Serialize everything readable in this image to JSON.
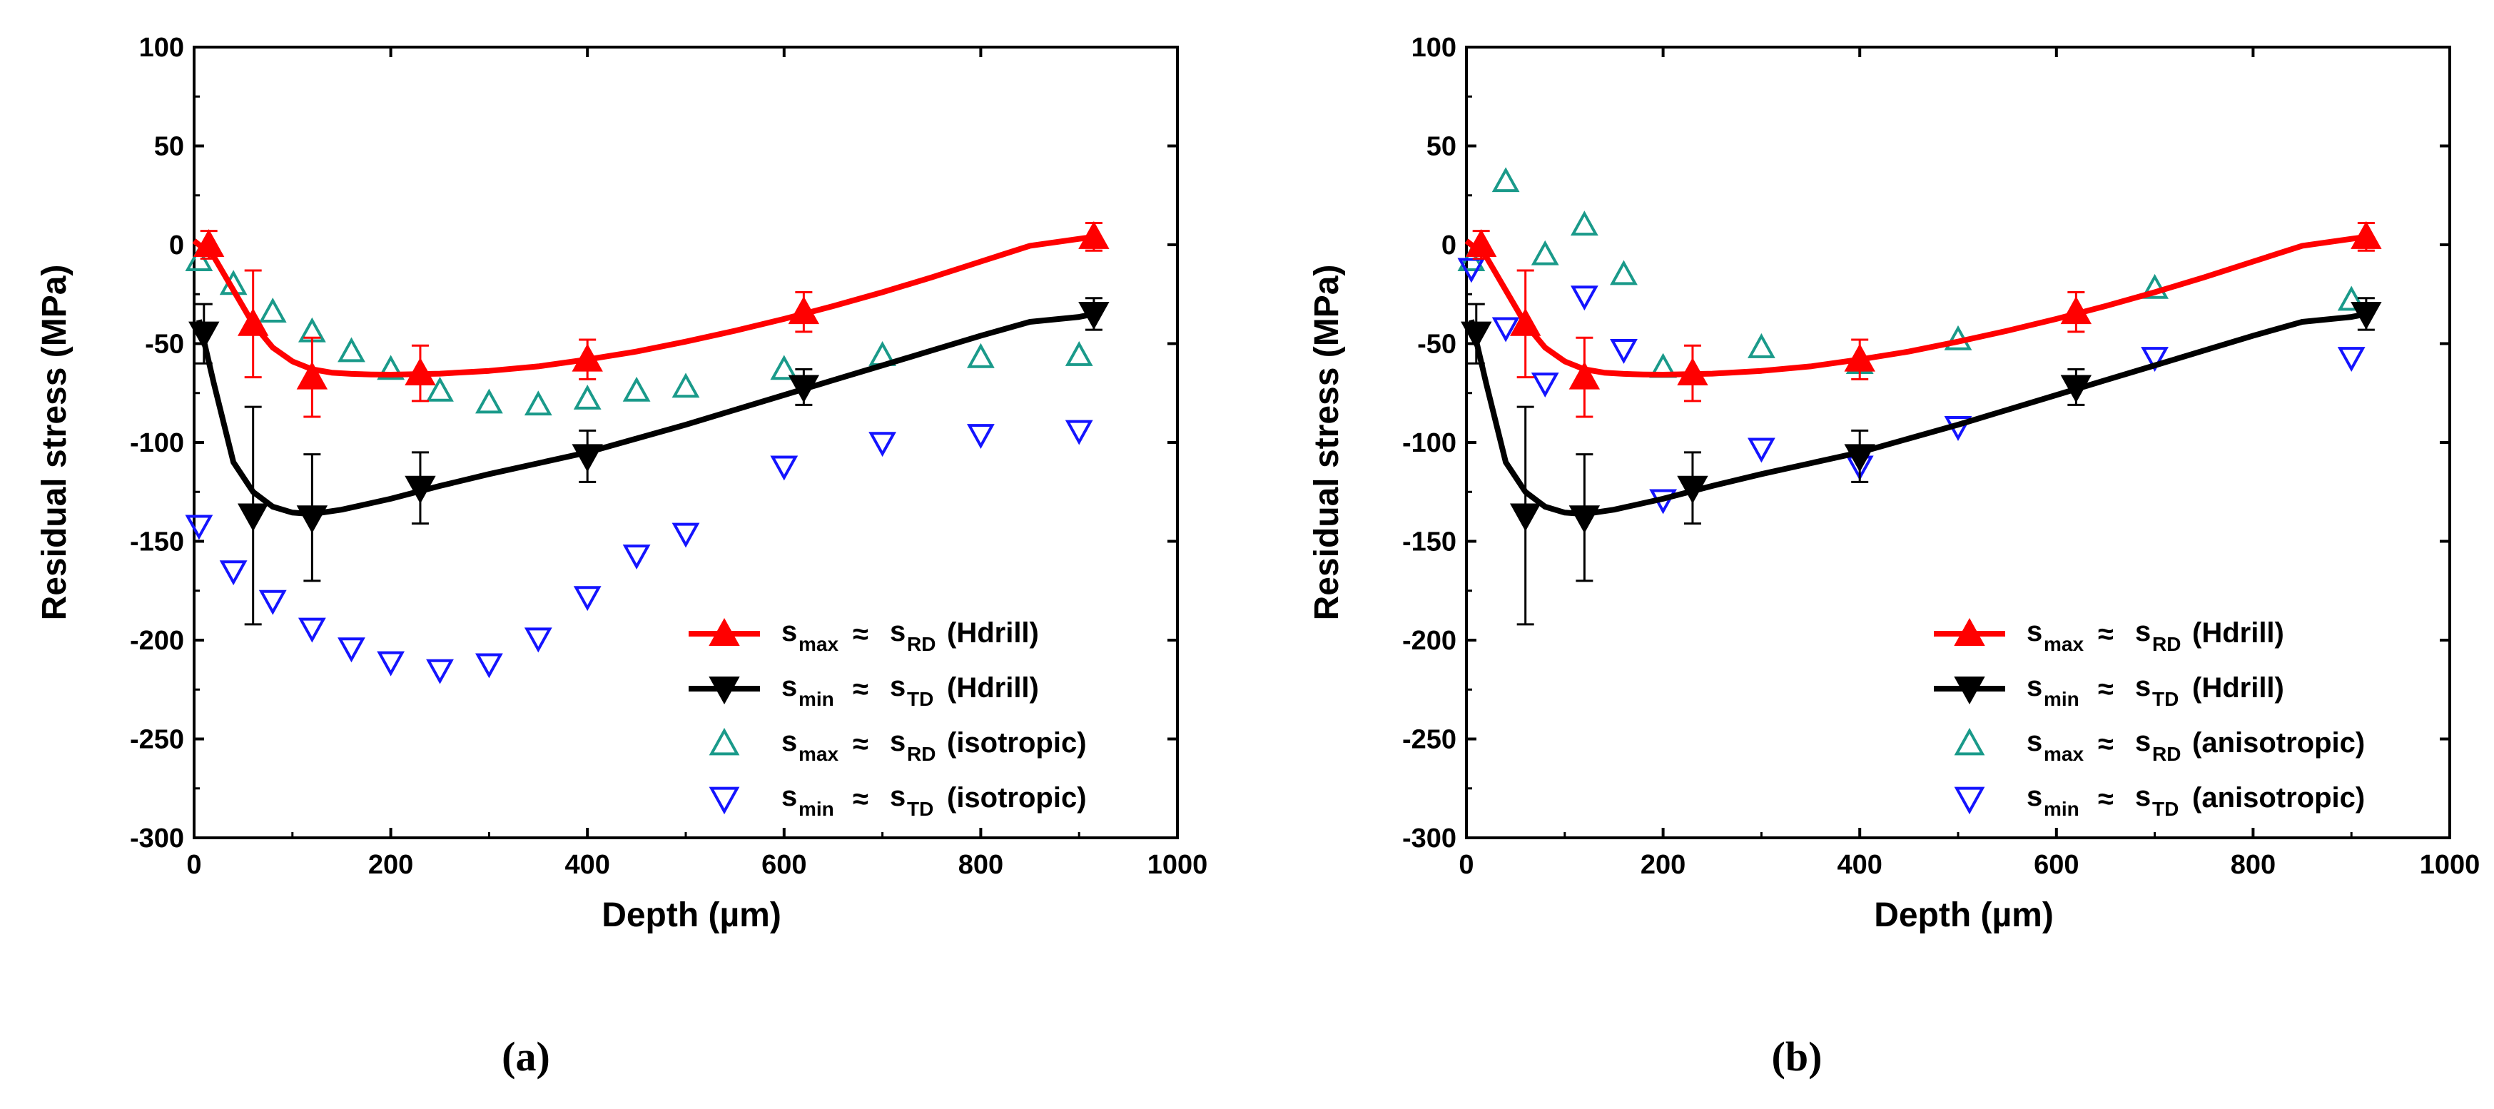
{
  "colors": {
    "red": "#ff0000",
    "black": "#000000",
    "teal": "#1a9a8a",
    "blue": "#1414ff"
  },
  "chart_data": [
    {
      "panel_label": "(a)",
      "type": "scatter",
      "xlabel": "Depth (µm)",
      "ylabel": "Residual stress (MPa)",
      "xlim": [
        0,
        1000
      ],
      "ylim": [
        -300,
        100
      ],
      "xticks": [
        0,
        200,
        400,
        600,
        800,
        1000
      ],
      "yticks": [
        -300,
        -250,
        -200,
        -150,
        -100,
        -50,
        0,
        50,
        100
      ],
      "grid": false,
      "legend_position": "bottom-right",
      "series": [
        {
          "id": "smax_hdrill",
          "marker": "triangle-up-filled",
          "color": "red",
          "line": true,
          "legend": {
            "main": "s",
            "sub": "max",
            "approx": "≈",
            "main2": "s",
            "sub2": "RD",
            "tag": "(Hdrill)"
          },
          "x": [
            15,
            60,
            120,
            230,
            400,
            620,
            915
          ],
          "y": [
            0,
            -40,
            -67,
            -65,
            -58,
            -34,
            4
          ],
          "err": [
            7,
            27,
            20,
            14,
            10,
            10,
            7
          ],
          "curve_x": [
            0,
            20,
            40,
            60,
            80,
            100,
            120,
            140,
            160,
            180,
            200,
            250,
            300,
            350,
            400,
            450,
            500,
            550,
            600,
            650,
            700,
            750,
            800,
            850,
            900,
            915
          ],
          "curve_y": [
            2,
            -6,
            -23,
            -40,
            -52,
            -59,
            -63,
            -64.7,
            -65.3,
            -65.6,
            -65.7,
            -65.2,
            -63.8,
            -61.5,
            -58,
            -54,
            -49,
            -43.5,
            -37.5,
            -31,
            -24,
            -16.5,
            -8.5,
            -0.5,
            3,
            4
          ]
        },
        {
          "id": "smin_hdrill",
          "marker": "triangle-down-filled",
          "color": "black",
          "line": true,
          "legend": {
            "main": "s",
            "sub": "min",
            "approx": "≈",
            "main2": "s",
            "sub2": "TD",
            "tag": "(Hdrill)"
          },
          "x": [
            10,
            60,
            120,
            230,
            400,
            620,
            915
          ],
          "y": [
            -45,
            -137,
            -138,
            -123,
            -107,
            -72,
            -35
          ],
          "err": [
            15,
            55,
            32,
            18,
            13,
            9,
            8
          ],
          "curve_x": [
            5,
            20,
            40,
            60,
            80,
            100,
            120,
            150,
            200,
            250,
            300,
            350,
            400,
            450,
            500,
            550,
            600,
            650,
            700,
            750,
            800,
            850,
            900,
            915
          ],
          "curve_y": [
            -38,
            -70,
            -110,
            -125,
            -132.5,
            -135.5,
            -136.2,
            -134,
            -128.5,
            -122,
            -116,
            -110.5,
            -105,
            -98,
            -91,
            -83.5,
            -76,
            -68.5,
            -61,
            -53.5,
            -46,
            -39,
            -36.5,
            -35
          ]
        },
        {
          "id": "smax_iso",
          "marker": "triangle-up-open",
          "color": "teal",
          "line": false,
          "legend": {
            "main": "s",
            "sub": "max",
            "approx": "≈",
            "main2": "s",
            "sub2": "RD",
            "tag": "(isotropic)"
          },
          "x": [
            5,
            40,
            80,
            120,
            160,
            200,
            250,
            300,
            350,
            400,
            450,
            500,
            600,
            700,
            800,
            900
          ],
          "y": [
            -8,
            -20,
            -34,
            -44,
            -54,
            -63,
            -74,
            -80,
            -81,
            -78,
            -74,
            -72,
            -63,
            -56,
            -57,
            -56
          ]
        },
        {
          "id": "smin_iso",
          "marker": "triangle-down-open",
          "color": "blue",
          "line": false,
          "legend": {
            "main": "s",
            "sub": "min",
            "approx": "≈",
            "main2": "s",
            "sub2": "TD",
            "tag": "(isotropic)"
          },
          "x": [
            5,
            40,
            80,
            120,
            160,
            200,
            250,
            300,
            350,
            400,
            450,
            500,
            600,
            700,
            800,
            900
          ],
          "y": [
            -142,
            -165,
            -180,
            -194,
            -204,
            -211,
            -215,
            -212,
            -199,
            -178,
            -157,
            -146,
            -112,
            -100,
            -96,
            -94
          ]
        }
      ]
    },
    {
      "panel_label": "(b)",
      "type": "scatter",
      "xlabel": "Depth (µm)",
      "ylabel": "Residual stress (MPa)",
      "xlim": [
        0,
        1000
      ],
      "ylim": [
        -300,
        100
      ],
      "xticks": [
        0,
        200,
        400,
        600,
        800,
        1000
      ],
      "yticks": [
        -300,
        -250,
        -200,
        -150,
        -100,
        -50,
        0,
        50,
        100
      ],
      "grid": false,
      "legend_position": "bottom-right",
      "series": [
        {
          "id": "smax_hdrill",
          "marker": "triangle-up-filled",
          "color": "red",
          "line": true,
          "legend": {
            "main": "s",
            "sub": "max",
            "approx": "≈",
            "main2": "s",
            "sub2": "RD",
            "tag": "(Hdrill)"
          },
          "x": [
            15,
            60,
            120,
            230,
            400,
            620,
            915
          ],
          "y": [
            0,
            -40,
            -67,
            -65,
            -58,
            -34,
            4
          ],
          "err": [
            7,
            27,
            20,
            14,
            10,
            10,
            7
          ],
          "curve_x": [
            0,
            20,
            40,
            60,
            80,
            100,
            120,
            140,
            160,
            180,
            200,
            250,
            300,
            350,
            400,
            450,
            500,
            550,
            600,
            650,
            700,
            750,
            800,
            850,
            900,
            915
          ],
          "curve_y": [
            2,
            -6,
            -23,
            -40,
            -52,
            -59,
            -63,
            -64.7,
            -65.3,
            -65.6,
            -65.7,
            -65.2,
            -63.8,
            -61.5,
            -58,
            -54,
            -49,
            -43.5,
            -37.5,
            -31,
            -24,
            -16.5,
            -8.5,
            -0.5,
            3,
            4
          ]
        },
        {
          "id": "smin_hdrill",
          "marker": "triangle-down-filled",
          "color": "black",
          "line": true,
          "legend": {
            "main": "s",
            "sub": "min",
            "approx": "≈",
            "main2": "s",
            "sub2": "TD",
            "tag": "(Hdrill)"
          },
          "x": [
            10,
            60,
            120,
            230,
            400,
            620,
            915
          ],
          "y": [
            -45,
            -137,
            -138,
            -123,
            -107,
            -72,
            -35
          ],
          "err": [
            15,
            55,
            32,
            18,
            13,
            9,
            8
          ],
          "curve_x": [
            5,
            20,
            40,
            60,
            80,
            100,
            120,
            150,
            200,
            250,
            300,
            350,
            400,
            450,
            500,
            550,
            600,
            650,
            700,
            750,
            800,
            850,
            900,
            915
          ],
          "curve_y": [
            -38,
            -70,
            -110,
            -125,
            -132.5,
            -135.5,
            -136.2,
            -134,
            -128.5,
            -122,
            -116,
            -110.5,
            -105,
            -98,
            -91,
            -83.5,
            -76,
            -68.5,
            -61,
            -53.5,
            -46,
            -39,
            -36.5,
            -35
          ]
        },
        {
          "id": "smax_aniso",
          "marker": "triangle-up-open",
          "color": "teal",
          "line": false,
          "legend": {
            "main": "s",
            "sub": "max",
            "approx": "≈",
            "main2": "s",
            "sub2": "RD",
            "tag": "(anisotropic)"
          },
          "x": [
            5,
            40,
            80,
            120,
            160,
            200,
            300,
            400,
            500,
            700,
            900
          ],
          "y": [
            -8,
            32,
            -5,
            10,
            -15,
            -62,
            -52,
            -60,
            -48,
            -22,
            -28
          ]
        },
        {
          "id": "smin_aniso",
          "marker": "triangle-down-open",
          "color": "blue",
          "line": false,
          "legend": {
            "main": "s",
            "sub": "min",
            "approx": "≈",
            "main2": "s",
            "sub2": "TD",
            "tag": "(anisotropic)"
          },
          "x": [
            5,
            40,
            80,
            120,
            160,
            200,
            300,
            400,
            500,
            700,
            900
          ],
          "y": [
            -12,
            -42,
            -70,
            -26,
            -53,
            -129,
            -103,
            -112,
            -92,
            -57,
            -57
          ]
        }
      ]
    }
  ]
}
